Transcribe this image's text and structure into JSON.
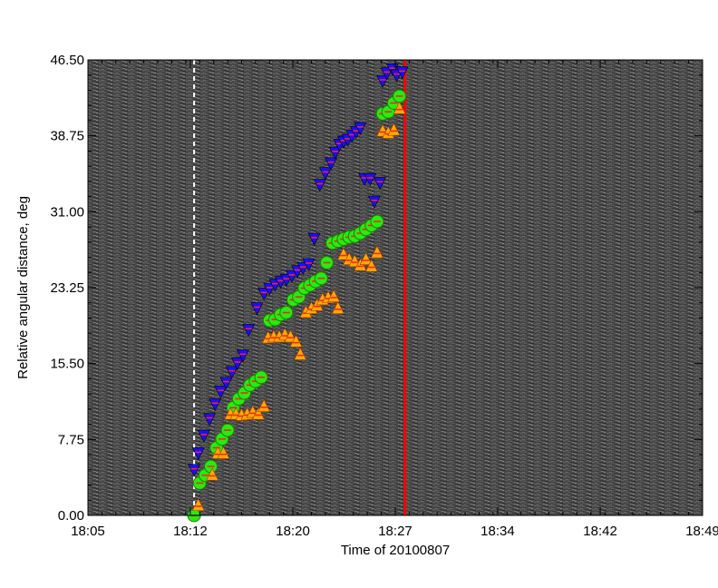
{
  "chart_data": {
    "type": "scatter",
    "xlabel": "Time of 20100807",
    "ylabel": "Relative angular distance, deg",
    "x_unit": "minutes after 18:05",
    "xlim": [
      0,
      44
    ],
    "ylim": [
      0,
      46.5
    ],
    "x_ticks": [
      {
        "value": 0,
        "label": "18:05"
      },
      {
        "value": 7.33,
        "label": "18:12"
      },
      {
        "value": 14.67,
        "label": "18:20"
      },
      {
        "value": 22,
        "label": "18:27"
      },
      {
        "value": 29.33,
        "label": "18:34"
      },
      {
        "value": 36.67,
        "label": "18:42"
      },
      {
        "value": 44,
        "label": "18:49"
      }
    ],
    "y_ticks": [
      {
        "value": 0,
        "label": "0.00"
      },
      {
        "value": 7.75,
        "label": "7.75"
      },
      {
        "value": 15.5,
        "label": "15.50"
      },
      {
        "value": 23.25,
        "label": "23.25"
      },
      {
        "value": 31,
        "label": "31.00"
      },
      {
        "value": 38.75,
        "label": "38.75"
      },
      {
        "value": 46.5,
        "label": "46.50"
      }
    ],
    "background": "grayscale noise (time-distance map)",
    "vertical_lines": [
      {
        "x": 7.6,
        "color": "#ffffff",
        "style": "dashed"
      },
      {
        "x": 22.7,
        "color": "#ff0000",
        "style": "solid"
      }
    ],
    "series": [
      {
        "marker": "triangle-down",
        "color": "#1a10ff",
        "points": [
          [
            7.6,
            4.6
          ],
          [
            7.9,
            6.3
          ],
          [
            8.3,
            8.1
          ],
          [
            8.7,
            9.8
          ],
          [
            9.1,
            11.3
          ],
          [
            9.5,
            12.6
          ],
          [
            9.9,
            13.5
          ],
          [
            10.3,
            14.6
          ],
          [
            10.7,
            15.5
          ],
          [
            11.1,
            16.3
          ],
          [
            11.5,
            18.9
          ],
          [
            12.1,
            21.1
          ],
          [
            12.6,
            22.6
          ],
          [
            13,
            23.1
          ],
          [
            13.4,
            23.5
          ],
          [
            13.8,
            23.8
          ],
          [
            14.2,
            24
          ],
          [
            14.6,
            24.4
          ],
          [
            15,
            24.9
          ],
          [
            15.4,
            25.2
          ],
          [
            15.8,
            25.6
          ],
          [
            16.2,
            28.2
          ],
          [
            16.6,
            33.7
          ],
          [
            17,
            34.9
          ],
          [
            17.4,
            35.9
          ],
          [
            17.7,
            37
          ],
          [
            18,
            37.8
          ],
          [
            18.3,
            38.1
          ],
          [
            18.6,
            38.3
          ],
          [
            18.9,
            38.7
          ],
          [
            19.2,
            39.1
          ],
          [
            19.5,
            39.5
          ],
          [
            19.8,
            34.3
          ],
          [
            20.2,
            34.3
          ],
          [
            20.5,
            32
          ],
          [
            20.9,
            33.9
          ],
          [
            21.1,
            44.3
          ],
          [
            21.4,
            45.1
          ],
          [
            21.8,
            45.5
          ],
          [
            22.1,
            44.9
          ],
          [
            22.5,
            45.2
          ]
        ]
      },
      {
        "marker": "circle",
        "color": "#22ee11",
        "points": [
          [
            7.6,
            0
          ],
          [
            8,
            3.3
          ],
          [
            8.4,
            4.1
          ],
          [
            8.8,
            5
          ],
          [
            9.2,
            6.9
          ],
          [
            9.6,
            7.8
          ],
          [
            10,
            8.7
          ],
          [
            10.4,
            11
          ],
          [
            10.8,
            11.9
          ],
          [
            11.2,
            12.5
          ],
          [
            11.6,
            13.3
          ],
          [
            12,
            13.7
          ],
          [
            12.4,
            14.1
          ],
          [
            13,
            19.9
          ],
          [
            13.4,
            20
          ],
          [
            13.8,
            20.5
          ],
          [
            14.2,
            20.7
          ],
          [
            14.7,
            22
          ],
          [
            15.1,
            22.3
          ],
          [
            15.5,
            23.2
          ],
          [
            15.9,
            23.5
          ],
          [
            16.3,
            23.9
          ],
          [
            16.7,
            24.2
          ],
          [
            17.1,
            25.8
          ],
          [
            17.5,
            27.8
          ],
          [
            17.9,
            28
          ],
          [
            18.3,
            28.2
          ],
          [
            18.7,
            28.4
          ],
          [
            19.1,
            28.5
          ],
          [
            19.5,
            28.8
          ],
          [
            19.9,
            29.2
          ],
          [
            20.3,
            29.6
          ],
          [
            20.7,
            30
          ],
          [
            21.1,
            41
          ],
          [
            21.5,
            41.2
          ],
          [
            21.9,
            42.1
          ],
          [
            22.3,
            42.8
          ]
        ]
      },
      {
        "marker": "triangle-up",
        "color": "#ffaa00",
        "points": [
          [
            7.9,
            1.1
          ],
          [
            8.9,
            4.2
          ],
          [
            9.3,
            6.4
          ],
          [
            9.7,
            6.4
          ],
          [
            10.2,
            10.4
          ],
          [
            10.6,
            10.4
          ],
          [
            11,
            10.3
          ],
          [
            11.4,
            10.4
          ],
          [
            11.8,
            10.6
          ],
          [
            12.2,
            10.4
          ],
          [
            12.6,
            11.2
          ],
          [
            12.9,
            18.2
          ],
          [
            13.3,
            18.3
          ],
          [
            13.7,
            18.3
          ],
          [
            14.1,
            18.5
          ],
          [
            14.5,
            18.3
          ],
          [
            14.9,
            17.8
          ],
          [
            15.2,
            16.5
          ],
          [
            15.6,
            20.8
          ],
          [
            16,
            21.2
          ],
          [
            16.4,
            21.5
          ],
          [
            16.8,
            22.1
          ],
          [
            17.2,
            22.3
          ],
          [
            17.6,
            22.4
          ],
          [
            17.9,
            21.2
          ],
          [
            18.3,
            26.7
          ],
          [
            18.7,
            26.2
          ],
          [
            19.1,
            26
          ],
          [
            19.5,
            25.6
          ],
          [
            19.9,
            26.2
          ],
          [
            20.3,
            25.5
          ],
          [
            20.7,
            26.9
          ],
          [
            21.1,
            39.3
          ],
          [
            21.5,
            39.1
          ],
          [
            21.9,
            39.4
          ],
          [
            22.3,
            41.6
          ]
        ]
      }
    ]
  }
}
